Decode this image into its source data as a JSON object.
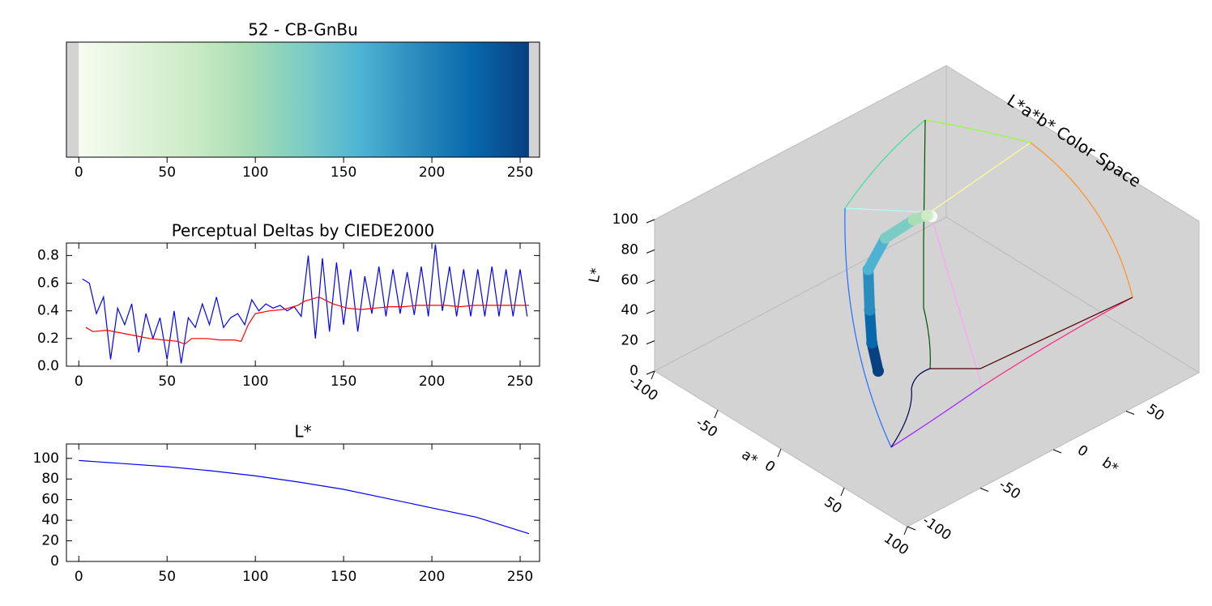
{
  "chart_data": [
    {
      "type": "colorbar",
      "title": "52 - CB-GnBu",
      "xlim": [
        -7,
        261
      ],
      "xticks": [
        0,
        50,
        100,
        150,
        200,
        250
      ],
      "clim": [
        0,
        255
      ],
      "colors": [
        "#f7fcf0",
        "#e0f3db",
        "#ccebc5",
        "#a8ddb5",
        "#7bccc4",
        "#4eb3d3",
        "#2b8cbe",
        "#0868ac",
        "#084081"
      ]
    },
    {
      "type": "line",
      "title": "Perceptual Deltas by CIEDE2000",
      "xlim": [
        -7,
        261
      ],
      "xticks": [
        0,
        50,
        100,
        150,
        200,
        250
      ],
      "ylim": [
        0,
        0.89
      ],
      "yticks": [
        {
          "value": 0,
          "label": "0.0"
        },
        0.2,
        0.4,
        0.6,
        0.8
      ],
      "series": [
        {
          "color": "#0000ff",
          "x": [
            2,
            6,
            10,
            14,
            18,
            22,
            26,
            30,
            34,
            38,
            42,
            46,
            50,
            54,
            58,
            62,
            66,
            70,
            74,
            78,
            82,
            86,
            90,
            94,
            98,
            102,
            106,
            110,
            114,
            118,
            122,
            126,
            130,
            134,
            138,
            142,
            146,
            150,
            154,
            158,
            162,
            166,
            170,
            174,
            178,
            182,
            186,
            190,
            194,
            198,
            202,
            206,
            210,
            214,
            218,
            222,
            226,
            230,
            234,
            238,
            242,
            246,
            250,
            254
          ],
          "values": [
            0.63,
            0.6,
            0.38,
            0.5,
            0.05,
            0.42,
            0.3,
            0.45,
            0.1,
            0.38,
            0.2,
            0.35,
            0.05,
            0.4,
            0.02,
            0.35,
            0.28,
            0.45,
            0.3,
            0.5,
            0.28,
            0.35,
            0.38,
            0.3,
            0.48,
            0.4,
            0.45,
            0.42,
            0.44,
            0.4,
            0.43,
            0.36,
            0.8,
            0.2,
            0.78,
            0.25,
            0.75,
            0.3,
            0.7,
            0.25,
            0.65,
            0.38,
            0.72,
            0.36,
            0.7,
            0.38,
            0.68,
            0.37,
            0.72,
            0.36,
            0.88,
            0.4,
            0.72,
            0.36,
            0.7,
            0.36,
            0.7,
            0.36,
            0.72,
            0.36,
            0.7,
            0.36,
            0.7,
            0.36
          ]
        },
        {
          "color": "#ff0000",
          "x": [
            4,
            8,
            16,
            24,
            32,
            40,
            48,
            56,
            60,
            64,
            72,
            80,
            88,
            92,
            96,
            100,
            108,
            116,
            124,
            128,
            136,
            144,
            152,
            160,
            168,
            176,
            184,
            192,
            200,
            208,
            216,
            224,
            232,
            240,
            248,
            255
          ],
          "values": [
            0.28,
            0.25,
            0.26,
            0.24,
            0.22,
            0.2,
            0.19,
            0.18,
            0.16,
            0.2,
            0.2,
            0.19,
            0.19,
            0.18,
            0.3,
            0.38,
            0.4,
            0.41,
            0.44,
            0.47,
            0.5,
            0.45,
            0.42,
            0.41,
            0.42,
            0.43,
            0.43,
            0.44,
            0.44,
            0.44,
            0.43,
            0.44,
            0.44,
            0.44,
            0.44,
            0.44
          ]
        }
      ]
    },
    {
      "type": "line",
      "title": "L*",
      "xlim": [
        -7,
        261
      ],
      "xticks": [
        0,
        50,
        100,
        150,
        200,
        250
      ],
      "ylim": [
        0,
        114
      ],
      "yticks": [
        0,
        20,
        40,
        60,
        80,
        100
      ],
      "series": [
        {
          "color": "#0000ff",
          "x": [
            0,
            25,
            50,
            75,
            100,
            125,
            150,
            175,
            200,
            225,
            255
          ],
          "values": [
            98,
            95,
            92,
            88,
            83,
            77,
            70,
            61,
            52,
            43,
            27
          ]
        }
      ]
    },
    {
      "type": "scatter3d",
      "title": "L*a*b* Color Space",
      "xlabel": "a*",
      "ylabel": "b*",
      "zlabel": "L*",
      "alim": [
        -100,
        100
      ],
      "blim": [
        -100,
        100
      ],
      "Llim": [
        0,
        100
      ],
      "aticks": [
        -100,
        -50,
        0,
        50,
        100
      ],
      "bticks": [
        -100,
        -50,
        0,
        50
      ],
      "Lticks": [
        0,
        20,
        40,
        60,
        80,
        100
      ],
      "L": [
        98,
        94,
        90,
        84,
        77,
        68,
        55,
        43,
        27
      ],
      "a": [
        -3,
        -9,
        -14,
        -22,
        -27,
        -21,
        -6,
        5,
        10
      ],
      "b": [
        6,
        9,
        12,
        10,
        -5,
        -22,
        -34,
        -42,
        -42
      ],
      "colors": [
        "#f7fcf0",
        "#e0f3db",
        "#ccebc5",
        "#a8ddb5",
        "#7bccc4",
        "#4eb3d3",
        "#2b8cbe",
        "#0868ac",
        "#084081"
      ]
    }
  ]
}
